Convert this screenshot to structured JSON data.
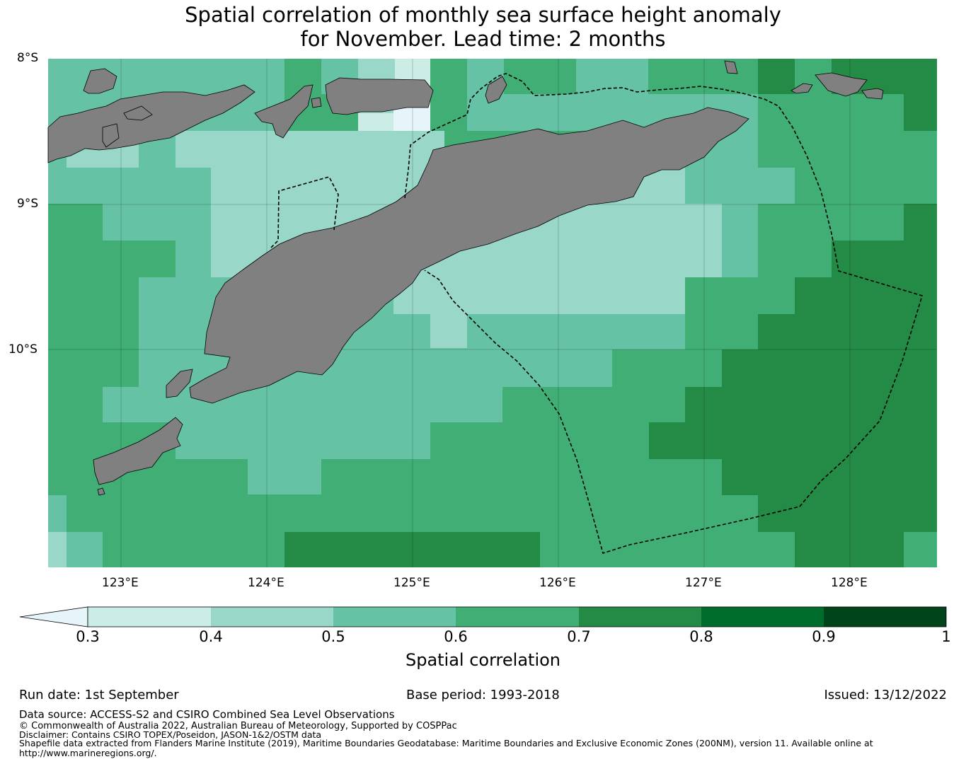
{
  "title": {
    "line1": "Spatial correlation of monthly sea surface height anomaly",
    "line2": "for November. Lead time: 2 months"
  },
  "map": {
    "lon_range": [
      122.5,
      128.6
    ],
    "lat_range": [
      -11.5,
      -8.0
    ],
    "lon_ticks": [
      "123°E",
      "124°E",
      "125°E",
      "126°E",
      "127°E",
      "128°E"
    ],
    "lat_ticks": [
      "8°S",
      "9°S",
      "10°S"
    ],
    "land_color": "#808080",
    "eez_boundary": "dashed"
  },
  "colorbar": {
    "label": "Spatial correlation",
    "ticks": [
      "0.3",
      "0.4",
      "0.5",
      "0.6",
      "0.7",
      "0.8",
      "0.9",
      "1"
    ],
    "under_color": "#e6f5f9",
    "colors": [
      "#ccece6",
      "#99d8c9",
      "#66c2a4",
      "#41ae76",
      "#238b45",
      "#006d2c",
      "#00441b"
    ]
  },
  "footer": {
    "run_date": "Run date: 1st September",
    "base_period": "Base period: 1993-2018",
    "issued": "Issued: 13/12/2022",
    "data_source": "Data source: ACCESS-S2 and CSIRO Combined Sea Level Observations",
    "copyright": "© Commonwealth of Australia 2022, Australian Bureau of Meteorology, Supported by COSPPac",
    "disclaimer": "Disclaimer: Contains CSIRO TOPEX/Poseidon, JASON-1&2/OSTM data",
    "shapefile": "Shapefile data extracted from Flanders Marine Institute (2019), Maritime Boundaries Geodatabase: Maritime Boundaries and Exclusive Economic Zones (200NM), version 11. Available online at",
    "url": "http://www.marineregions.org/."
  }
}
